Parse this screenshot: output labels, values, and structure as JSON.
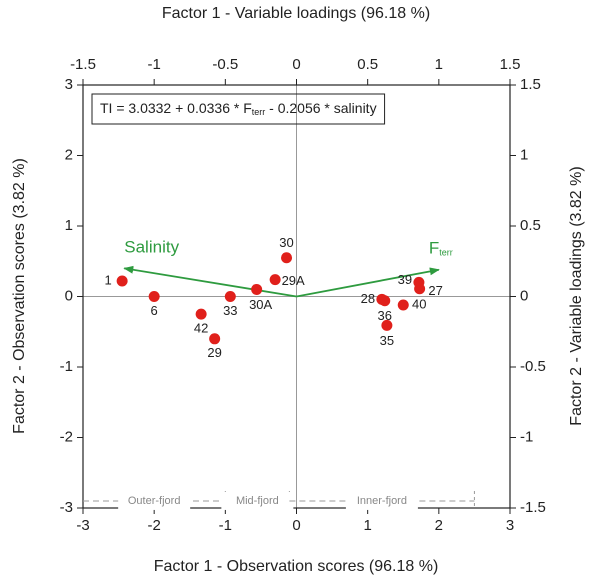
{
  "chart_data": {
    "type": "scatter",
    "xlabel": "Factor 1 - Observation scores (96.18 %)",
    "x2label": "Factor 1 - Variable loadings (96.18 %)",
    "ylabel": "Factor 2 - Observation scores (3.82 %)",
    "y2label": "Factor 2 - Variable loadings (3.82 %)",
    "xlim": [
      -3,
      3
    ],
    "xticks": [
      -3,
      -2,
      -1,
      0,
      1,
      2,
      3
    ],
    "ylim": [
      -3,
      3
    ],
    "yticks": [
      -3,
      -2,
      -1,
      0,
      1,
      2,
      3
    ],
    "x2lim": [
      -1.5,
      1.5
    ],
    "x2ticks": [
      -1.5,
      -1,
      -0.5,
      0,
      0.5,
      1,
      1.5
    ],
    "y2lim": [
      -1.5,
      1.5
    ],
    "y2ticks": [
      -1.5,
      -1,
      -0.5,
      0,
      0.5,
      1,
      1.5
    ],
    "series": [
      {
        "color": "#e0201b",
        "labels": [
          "1",
          "6",
          "42",
          "29",
          "33",
          "30A",
          "29A",
          "30",
          "28",
          "36",
          "35",
          "40",
          "39",
          "27"
        ],
        "x": [
          -2.45,
          -2.0,
          -1.34,
          -1.15,
          -0.93,
          -0.56,
          -0.3,
          -0.14,
          1.2,
          1.24,
          1.27,
          1.5,
          1.72,
          1.73
        ],
        "y": [
          0.22,
          0.0,
          -0.25,
          -0.6,
          0.0,
          0.1,
          0.24,
          0.55,
          -0.04,
          -0.06,
          -0.41,
          -0.12,
          0.2,
          0.11
        ]
      }
    ],
    "vectors": {
      "color": "#2e9b3f",
      "items": [
        {
          "name": "Salinity",
          "x": -1.21,
          "y": 0.2
        },
        {
          "name": "F",
          "sub": "terr",
          "x": 1.0,
          "y": 0.19
        }
      ]
    },
    "equation": {
      "prefix": "TI = 3.0332 + 0.0336 * F",
      "sub": "terr",
      "suffix": " - 0.2056 * salinity"
    },
    "regions": {
      "y": -2.9,
      "items": [
        {
          "label": "Outer-fjord",
          "from": -3,
          "to": -1
        },
        {
          "label": "Mid-fjord",
          "from": -1,
          "to": -0.1
        },
        {
          "label": "Inner-fjord",
          "from": -0.1,
          "to": 2.5
        }
      ]
    }
  }
}
